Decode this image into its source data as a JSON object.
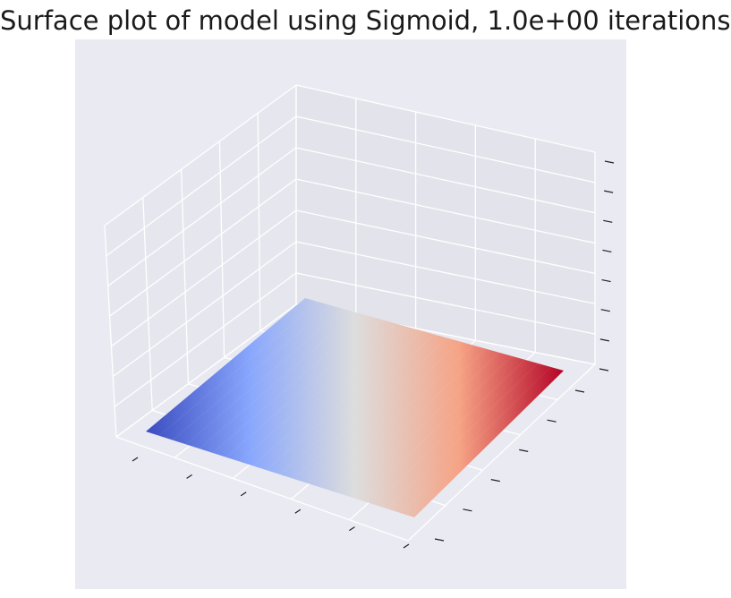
{
  "title": "Surface plot of model using Sigmoid, 1.0e+00 iterations",
  "colors": {
    "background": "#eaeaf2",
    "pane_left": "#e6e6ee",
    "pane_back": "#e3e3eb",
    "pane_floor": "#e9e9f1",
    "grid": "#ffffff",
    "colormap": "coolwarm",
    "colormap_stops": [
      "#3b4cc0",
      "#89a7fd",
      "#dddddd",
      "#f6a385",
      "#b40426"
    ]
  },
  "chart_data": {
    "type": "surface",
    "title": "Surface plot of model using Sigmoid, 1.0e+00 iterations",
    "xlabel": "",
    "ylabel": "",
    "zlabel": "",
    "xlim": [
      0,
      1
    ],
    "ylim": [
      0,
      1
    ],
    "zlim": [
      0,
      1
    ],
    "x_ticks": 6,
    "y_ticks": 6,
    "z_ticks": 8,
    "tick_labels_shown": false,
    "grid": true,
    "colormap": "coolwarm",
    "surface": {
      "description_of_values": "flat plane at the bottom of the z range, color varies along x from blue to red",
      "z_values": [
        [
          0,
          0,
          0,
          0,
          0,
          0
        ],
        [
          0,
          0,
          0,
          0,
          0,
          0
        ],
        [
          0,
          0,
          0,
          0,
          0,
          0
        ],
        [
          0,
          0,
          0,
          0,
          0,
          0
        ],
        [
          0,
          0,
          0,
          0,
          0,
          0
        ],
        [
          0,
          0,
          0,
          0,
          0,
          0
        ]
      ],
      "color_range": [
        0,
        1
      ]
    }
  }
}
